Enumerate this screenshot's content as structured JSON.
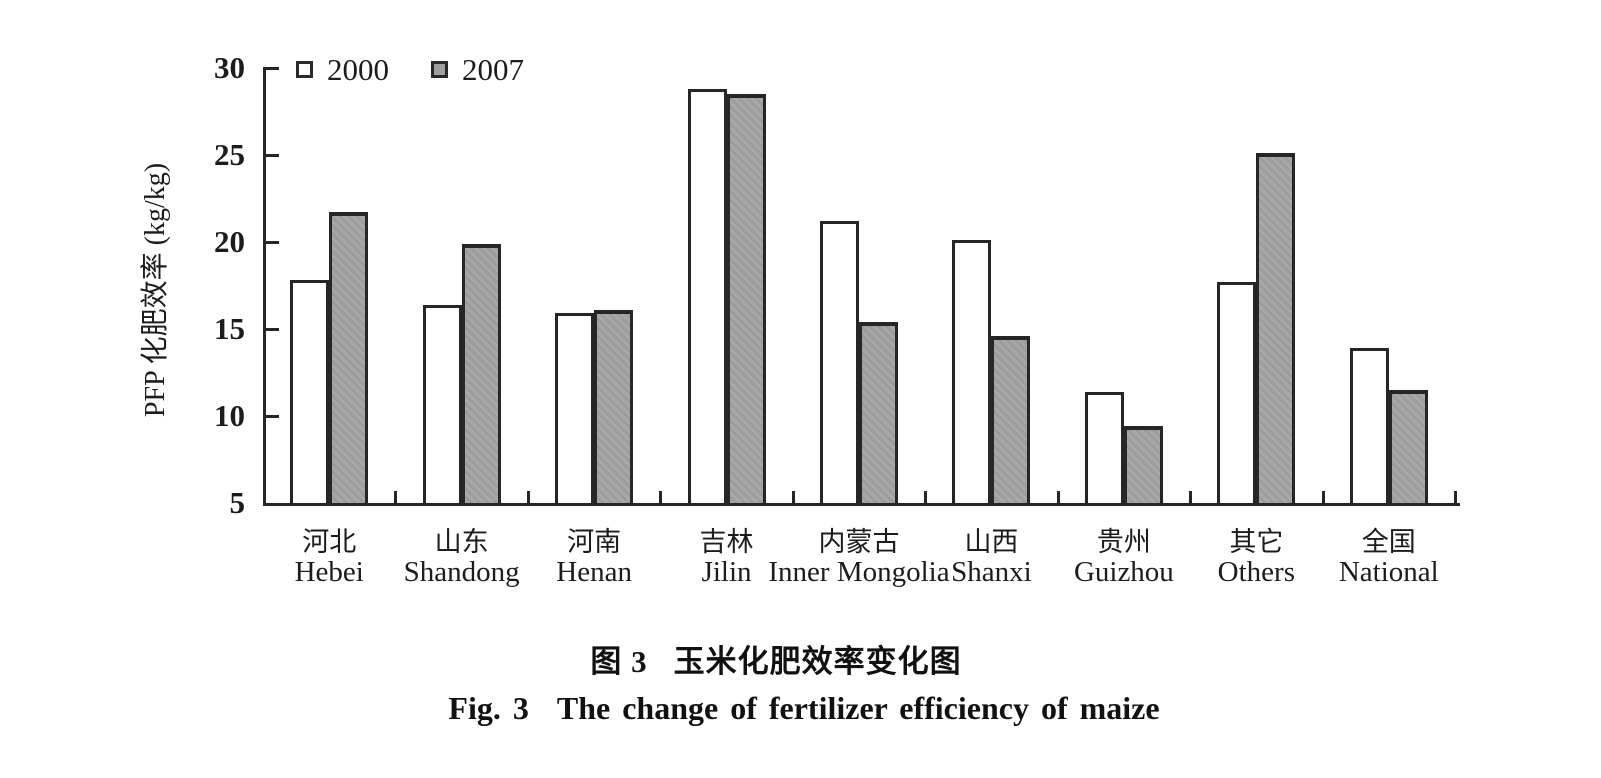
{
  "figure": {
    "caption": {
      "zh_prefix": "图 3",
      "zh_text": "玉米化肥效率变化图",
      "en_prefix": "Fig. 3",
      "en_text": "The change of fertilizer efficiency of maize"
    }
  },
  "chart_data": {
    "type": "bar",
    "title_zh": "玉米化肥效率变化图",
    "title_en": "The change of fertilizer efficiency of maize",
    "ylabel": "PFP 化肥效率 (kg/kg)",
    "xlabel": "",
    "ylim": [
      5,
      30
    ],
    "yticks": [
      5,
      10,
      15,
      20,
      25,
      30
    ],
    "grid": false,
    "legend_position": "top-left",
    "categories_zh": [
      "河北",
      "山东",
      "河南",
      "吉林",
      "内蒙古",
      "山西",
      "贵州",
      "其它",
      "全国"
    ],
    "categories_en": [
      "Hebei",
      "Shandong",
      "Henan",
      "Jilin",
      "Inner Mongolia",
      "Shanxi",
      "Guizhou",
      "Others",
      "National"
    ],
    "series": [
      {
        "name": "2000",
        "fill": "white",
        "values": [
          17.8,
          16.4,
          15.9,
          28.8,
          21.2,
          20.1,
          11.4,
          17.7,
          13.9
        ]
      },
      {
        "name": "2007",
        "fill": "gray",
        "values": [
          21.7,
          19.9,
          16.1,
          28.5,
          15.4,
          14.6,
          9.4,
          25.1,
          11.5
        ]
      }
    ]
  },
  "colors": {
    "background": "#ffffff",
    "bar_2000_fill": "#ffffff",
    "bar_2007_fill": "#a2a2a2",
    "stroke": "#262626",
    "text": "#1c1c1c"
  }
}
